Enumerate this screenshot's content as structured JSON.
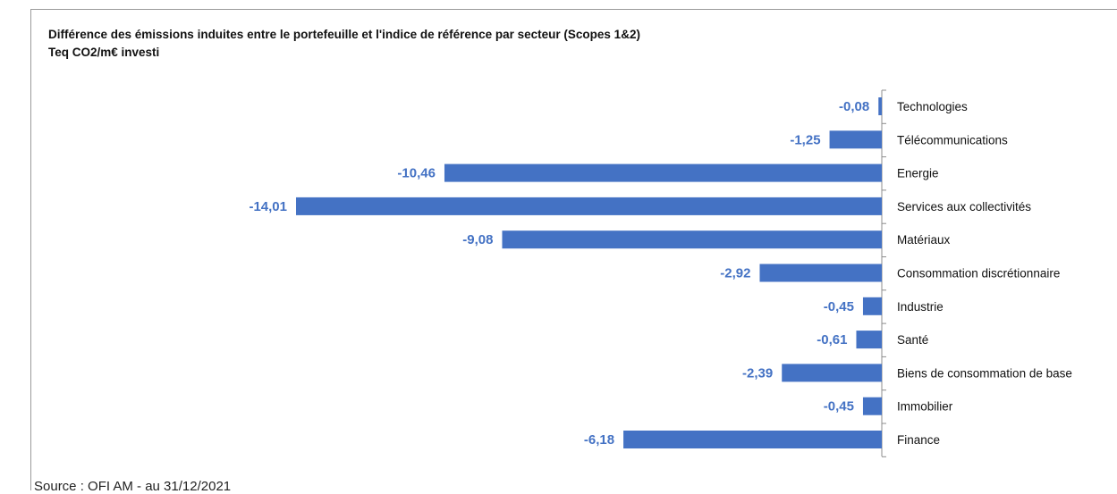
{
  "chart_data": {
    "type": "bar",
    "orientation": "horizontal",
    "title": "Différence des émissions induites entre le portefeuille et l'indice de référence par secteur (Scopes 1&2)",
    "subtitle": "Teq CO2/m€ investi",
    "categories": [
      "Technologies",
      "Télécommunications",
      "Energie",
      "Services aux collectivités",
      "Matériaux",
      "Consommation discrétionnaire",
      "Industrie",
      "Santé",
      "Biens de consommation de base",
      "Immobilier",
      "Finance"
    ],
    "values": [
      -0.08,
      -1.25,
      -10.46,
      -14.01,
      -9.08,
      -2.92,
      -0.45,
      -0.61,
      -2.39,
      -0.45,
      -6.18
    ],
    "value_labels": [
      "-0,08",
      "-1,25",
      "-10,46",
      "-14,01",
      "-9,08",
      "-2,92",
      "-0,45",
      "-0,61",
      "-2,39",
      "-0,45",
      "-6,18"
    ],
    "xlim": [
      -14.01,
      0
    ],
    "grid": false,
    "legend": "none",
    "bar_color": "#4472c4"
  },
  "source": "Source : OFI AM - au 31/12/2021"
}
